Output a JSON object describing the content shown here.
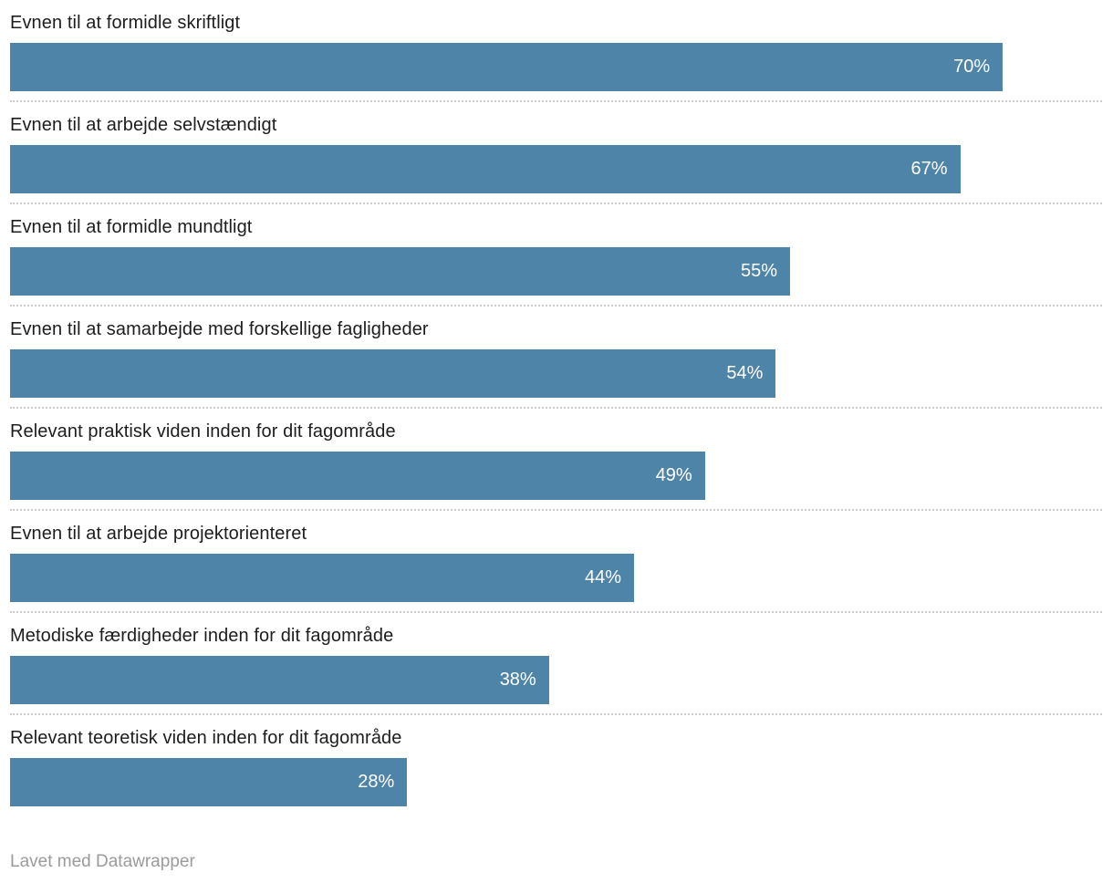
{
  "chart_data": {
    "type": "bar",
    "orientation": "horizontal",
    "title": "",
    "xlabel": "",
    "ylabel": "",
    "categories": [
      "Evnen til at formidle skriftligt",
      "Evnen til at arbejde selvstændigt",
      "Evnen til at formidle mundtligt",
      "Evnen til at samarbejde med forskellige fagligheder",
      "Relevant praktisk viden inden for dit fagområde",
      "Evnen til at arbejde projektorienteret",
      "Metodiske færdigheder inden for dit fagområde",
      "Relevant teoretisk viden inden for dit fagområde"
    ],
    "values": [
      70,
      67,
      55,
      54,
      49,
      44,
      38,
      28
    ],
    "value_suffix": "%",
    "xlim": [
      0,
      77
    ],
    "grid": "dotted-row-separators",
    "legend": "none",
    "colors": {
      "bar": "#4e84a8",
      "value_label": "#ffffff",
      "category_label": "#1d1d1d",
      "separator": "#cccccc",
      "footer_text": "#9b9b9b"
    }
  },
  "footer": {
    "credit": "Lavet med Datawrapper"
  }
}
